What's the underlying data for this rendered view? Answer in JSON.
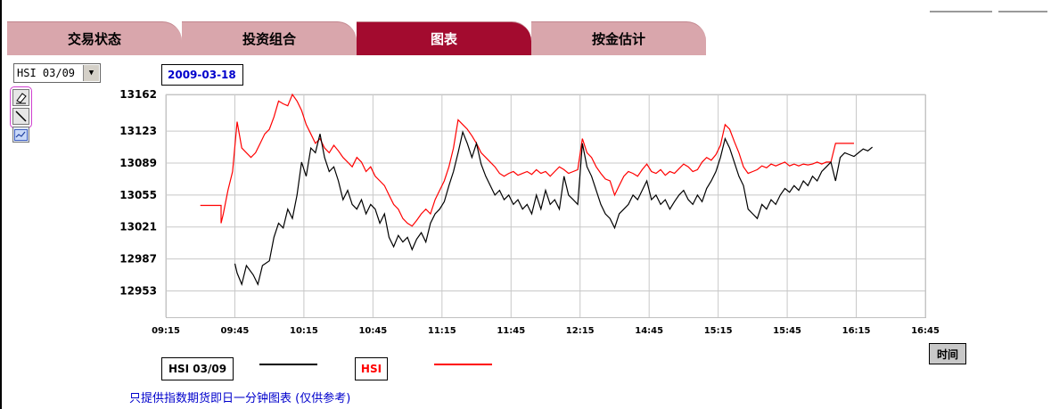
{
  "tabs": [
    {
      "label": "交易状态",
      "active": false
    },
    {
      "label": "投资组合",
      "active": false
    },
    {
      "label": "图表",
      "active": true
    },
    {
      "label": "按金估计",
      "active": false
    }
  ],
  "series_select": {
    "value": "HSI 03/09"
  },
  "date": "2009-03-18",
  "tools": [
    {
      "icon": "eraser-icon"
    },
    {
      "icon": "draw-line-icon"
    },
    {
      "icon": "chart-icon"
    }
  ],
  "note": "只提供指数期货即日一分钟图表 (仅供参考)",
  "colors": {
    "accent": "#a30b2f",
    "tab": "#d9a6ac",
    "futures": "#000000",
    "index": "#ff0000",
    "date_text": "#0000cc"
  },
  "chart_data": {
    "type": "line",
    "xlabel": "时间",
    "ylabel": "",
    "ylim": [
      12925,
      13162
    ],
    "y_ticks": [
      13162,
      13123,
      13089,
      13055,
      13021,
      12987,
      12953
    ],
    "x_tick_labels": [
      "09:15",
      "09:45",
      "10:15",
      "10:45",
      "11:15",
      "11:45",
      "12:15",
      "14:45",
      "15:15",
      "15:45",
      "16:15",
      "16:45"
    ],
    "grid": true,
    "legend": "bottom",
    "series": [
      {
        "name": "HSI 03/09",
        "color": "#000000",
        "points": [
          [
            "09:45",
            12982
          ],
          [
            "09:46",
            12972
          ],
          [
            "09:48",
            12960
          ],
          [
            "09:50",
            12980
          ],
          [
            "09:53",
            12970
          ],
          [
            "09:55",
            12960
          ],
          [
            "09:57",
            12980
          ],
          [
            "10:00",
            12985
          ],
          [
            "10:02",
            13010
          ],
          [
            "10:04",
            13025
          ],
          [
            "10:06",
            13020
          ],
          [
            "10:08",
            13040
          ],
          [
            "10:10",
            13030
          ],
          [
            "10:12",
            13055
          ],
          [
            "10:14",
            13090
          ],
          [
            "10:16",
            13075
          ],
          [
            "10:18",
            13105
          ],
          [
            "10:20",
            13100
          ],
          [
            "10:22",
            13120
          ],
          [
            "10:24",
            13095
          ],
          [
            "10:26",
            13080
          ],
          [
            "10:28",
            13085
          ],
          [
            "10:30",
            13070
          ],
          [
            "10:32",
            13050
          ],
          [
            "10:34",
            13060
          ],
          [
            "10:36",
            13045
          ],
          [
            "10:38",
            13040
          ],
          [
            "10:40",
            13050
          ],
          [
            "10:42",
            13035
          ],
          [
            "10:44",
            13045
          ],
          [
            "10:46",
            13040
          ],
          [
            "10:48",
            13025
          ],
          [
            "10:50",
            13035
          ],
          [
            "10:52",
            13010
          ],
          [
            "10:54",
            13000
          ],
          [
            "10:56",
            13012
          ],
          [
            "10:58",
            13005
          ],
          [
            "11:00",
            13010
          ],
          [
            "11:02",
            12997
          ],
          [
            "11:04",
            13008
          ],
          [
            "11:06",
            13015
          ],
          [
            "11:08",
            13005
          ],
          [
            "11:10",
            13025
          ],
          [
            "11:12",
            13035
          ],
          [
            "11:14",
            13040
          ],
          [
            "11:16",
            13048
          ],
          [
            "11:18",
            13065
          ],
          [
            "11:20",
            13080
          ],
          [
            "11:22",
            13100
          ],
          [
            "11:24",
            13122
          ],
          [
            "11:26",
            13110
          ],
          [
            "11:28",
            13095
          ],
          [
            "11:30",
            13110
          ],
          [
            "11:32",
            13088
          ],
          [
            "11:34",
            13075
          ],
          [
            "11:36",
            13065
          ],
          [
            "11:38",
            13055
          ],
          [
            "11:40",
            13060
          ],
          [
            "11:42",
            13050
          ],
          [
            "11:44",
            13055
          ],
          [
            "11:46",
            13045
          ],
          [
            "11:48",
            13050
          ],
          [
            "11:50",
            13040
          ],
          [
            "11:52",
            13045
          ],
          [
            "11:54",
            13035
          ],
          [
            "11:56",
            13055
          ],
          [
            "11:58",
            13040
          ],
          [
            "12:00",
            13060
          ],
          [
            "12:02",
            13045
          ],
          [
            "12:04",
            13050
          ],
          [
            "12:06",
            13040
          ],
          [
            "12:08",
            13075
          ],
          [
            "12:10",
            13055
          ],
          [
            "12:12",
            13050
          ],
          [
            "12:14",
            13045
          ],
          [
            "12:16",
            13110
          ],
          [
            "12:18",
            13085
          ],
          [
            "12:20",
            13075
          ],
          [
            "12:22",
            13060
          ],
          [
            "12:24",
            13045
          ],
          [
            "12:26",
            13035
          ],
          [
            "12:28",
            13030
          ],
          [
            "14:30",
            13020
          ],
          [
            "14:32",
            13035
          ],
          [
            "14:34",
            13040
          ],
          [
            "14:36",
            13045
          ],
          [
            "14:38",
            13055
          ],
          [
            "14:40",
            13050
          ],
          [
            "14:42",
            13060
          ],
          [
            "14:44",
            13070
          ],
          [
            "14:46",
            13050
          ],
          [
            "14:48",
            13055
          ],
          [
            "14:50",
            13045
          ],
          [
            "14:52",
            13050
          ],
          [
            "14:54",
            13040
          ],
          [
            "14:56",
            13048
          ],
          [
            "14:58",
            13055
          ],
          [
            "15:00",
            13060
          ],
          [
            "15:02",
            13050
          ],
          [
            "15:04",
            13045
          ],
          [
            "15:06",
            13055
          ],
          [
            "15:08",
            13048
          ],
          [
            "15:10",
            13062
          ],
          [
            "15:12",
            13070
          ],
          [
            "15:14",
            13080
          ],
          [
            "15:16",
            13095
          ],
          [
            "15:18",
            13115
          ],
          [
            "15:20",
            13105
          ],
          [
            "15:22",
            13090
          ],
          [
            "15:24",
            13075
          ],
          [
            "15:26",
            13065
          ],
          [
            "15:28",
            13040
          ],
          [
            "15:30",
            13035
          ],
          [
            "15:32",
            13030
          ],
          [
            "15:34",
            13045
          ],
          [
            "15:36",
            13040
          ],
          [
            "15:38",
            13050
          ],
          [
            "15:40",
            13045
          ],
          [
            "15:42",
            13055
          ],
          [
            "15:44",
            13062
          ],
          [
            "15:46",
            13058
          ],
          [
            "15:48",
            13065
          ],
          [
            "15:50",
            13060
          ],
          [
            "15:52",
            13070
          ],
          [
            "15:54",
            13065
          ],
          [
            "15:56",
            13075
          ],
          [
            "15:58",
            13070
          ],
          [
            "16:00",
            13080
          ],
          [
            "16:02",
            13085
          ],
          [
            "16:04",
            13090
          ],
          [
            "16:06",
            13070
          ],
          [
            "16:08",
            13095
          ],
          [
            "16:10",
            13100
          ],
          [
            "16:12",
            13098
          ],
          [
            "16:14",
            13096
          ],
          [
            "16:16",
            13100
          ],
          [
            "16:18",
            13104
          ],
          [
            "16:20",
            13102
          ],
          [
            "16:22",
            13106
          ]
        ]
      },
      {
        "name": "HSI",
        "color": "#ff0000",
        "points": [
          [
            "09:30",
            13044
          ],
          [
            "09:35",
            13044
          ],
          [
            "09:39",
            13044
          ],
          [
            "09:39",
            13025
          ],
          [
            "09:40",
            13035
          ],
          [
            "09:42",
            13060
          ],
          [
            "09:44",
            13080
          ],
          [
            "09:46",
            13133
          ],
          [
            "09:48",
            13105
          ],
          [
            "09:50",
            13100
          ],
          [
            "09:52",
            13095
          ],
          [
            "09:54",
            13100
          ],
          [
            "09:56",
            13110
          ],
          [
            "09:58",
            13120
          ],
          [
            "10:00",
            13125
          ],
          [
            "10:02",
            13138
          ],
          [
            "10:04",
            13155
          ],
          [
            "10:06",
            13152
          ],
          [
            "10:08",
            13150
          ],
          [
            "10:10",
            13162
          ],
          [
            "10:12",
            13155
          ],
          [
            "10:14",
            13145
          ],
          [
            "10:16",
            13130
          ],
          [
            "10:18",
            13120
          ],
          [
            "10:20",
            13110
          ],
          [
            "10:22",
            13115
          ],
          [
            "10:24",
            13105
          ],
          [
            "10:26",
            13100
          ],
          [
            "10:28",
            13108
          ],
          [
            "10:30",
            13102
          ],
          [
            "10:32",
            13095
          ],
          [
            "10:34",
            13090
          ],
          [
            "10:36",
            13085
          ],
          [
            "10:38",
            13095
          ],
          [
            "10:40",
            13090
          ],
          [
            "10:42",
            13080
          ],
          [
            "10:44",
            13085
          ],
          [
            "10:46",
            13075
          ],
          [
            "10:48",
            13070
          ],
          [
            "10:50",
            13065
          ],
          [
            "10:52",
            13055
          ],
          [
            "10:54",
            13045
          ],
          [
            "10:56",
            13040
          ],
          [
            "10:58",
            13030
          ],
          [
            "11:00",
            13025
          ],
          [
            "11:02",
            13022
          ],
          [
            "11:04",
            13028
          ],
          [
            "11:06",
            13035
          ],
          [
            "11:08",
            13040
          ],
          [
            "11:10",
            13035
          ],
          [
            "11:12",
            13050
          ],
          [
            "11:14",
            13060
          ],
          [
            "11:16",
            13070
          ],
          [
            "11:18",
            13085
          ],
          [
            "11:20",
            13105
          ],
          [
            "11:22",
            13135
          ],
          [
            "11:24",
            13130
          ],
          [
            "11:26",
            13125
          ],
          [
            "11:28",
            13118
          ],
          [
            "11:30",
            13110
          ],
          [
            "11:32",
            13100
          ],
          [
            "11:34",
            13095
          ],
          [
            "11:36",
            13090
          ],
          [
            "11:38",
            13085
          ],
          [
            "11:40",
            13078
          ],
          [
            "11:42",
            13075
          ],
          [
            "11:44",
            13078
          ],
          [
            "11:46",
            13080
          ],
          [
            "11:48",
            13076
          ],
          [
            "11:50",
            13078
          ],
          [
            "11:52",
            13080
          ],
          [
            "11:54",
            13077
          ],
          [
            "11:56",
            13082
          ],
          [
            "11:58",
            13078
          ],
          [
            "12:00",
            13080
          ],
          [
            "12:02",
            13075
          ],
          [
            "12:04",
            13080
          ],
          [
            "12:06",
            13085
          ],
          [
            "12:08",
            13082
          ],
          [
            "12:10",
            13078
          ],
          [
            "12:12",
            13080
          ],
          [
            "12:14",
            13082
          ],
          [
            "12:16",
            13115
          ],
          [
            "12:18",
            13100
          ],
          [
            "12:20",
            13095
          ],
          [
            "12:22",
            13085
          ],
          [
            "12:24",
            13078
          ],
          [
            "12:26",
            13072
          ],
          [
            "12:28",
            13070
          ],
          [
            "14:30",
            13055
          ],
          [
            "14:32",
            13065
          ],
          [
            "14:34",
            13075
          ],
          [
            "14:36",
            13080
          ],
          [
            "14:38",
            13078
          ],
          [
            "14:40",
            13075
          ],
          [
            "14:42",
            13082
          ],
          [
            "14:44",
            13088
          ],
          [
            "14:46",
            13080
          ],
          [
            "14:48",
            13078
          ],
          [
            "14:50",
            13082
          ],
          [
            "14:52",
            13076
          ],
          [
            "14:54",
            13080
          ],
          [
            "14:56",
            13078
          ],
          [
            "14:58",
            13083
          ],
          [
            "15:00",
            13088
          ],
          [
            "15:02",
            13085
          ],
          [
            "15:04",
            13080
          ],
          [
            "15:06",
            13082
          ],
          [
            "15:08",
            13090
          ],
          [
            "15:10",
            13095
          ],
          [
            "15:12",
            13092
          ],
          [
            "15:14",
            13098
          ],
          [
            "15:16",
            13108
          ],
          [
            "15:18",
            13130
          ],
          [
            "15:20",
            13125
          ],
          [
            "15:22",
            13112
          ],
          [
            "15:24",
            13100
          ],
          [
            "15:26",
            13085
          ],
          [
            "15:28",
            13078
          ],
          [
            "15:30",
            13080
          ],
          [
            "15:32",
            13082
          ],
          [
            "15:34",
            13086
          ],
          [
            "15:36",
            13084
          ],
          [
            "15:38",
            13088
          ],
          [
            "15:40",
            13086
          ],
          [
            "15:42",
            13088
          ],
          [
            "15:44",
            13090
          ],
          [
            "15:46",
            13086
          ],
          [
            "15:48",
            13088
          ],
          [
            "15:50",
            13086
          ],
          [
            "15:52",
            13088
          ],
          [
            "15:54",
            13087
          ],
          [
            "15:56",
            13088
          ],
          [
            "15:58",
            13090
          ],
          [
            "16:00",
            13088
          ],
          [
            "16:02",
            13090
          ],
          [
            "16:04",
            13090
          ],
          [
            "16:06",
            13110
          ],
          [
            "16:10",
            13110
          ],
          [
            "16:14",
            13110
          ]
        ]
      }
    ]
  }
}
